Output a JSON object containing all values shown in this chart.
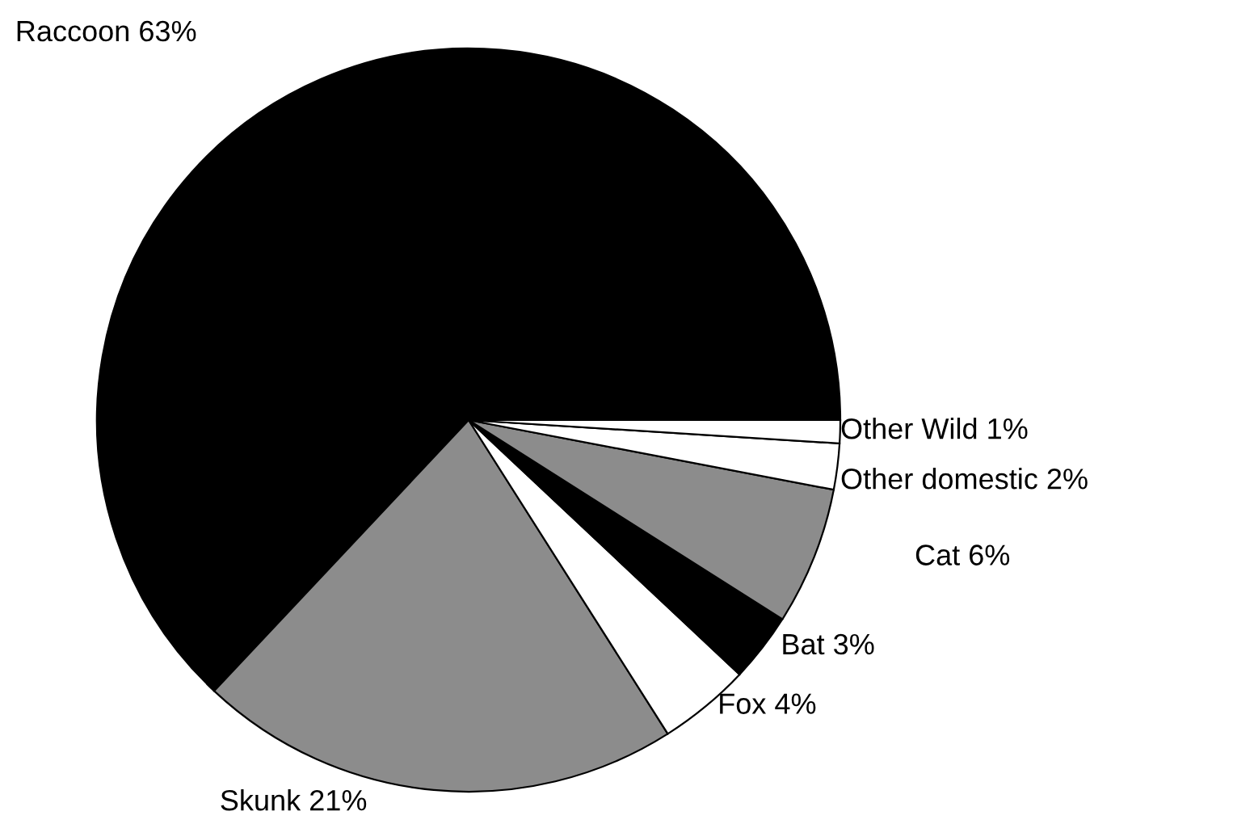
{
  "chart_data": {
    "type": "pie",
    "categories": [
      "Raccoon",
      "Skunk",
      "Fox",
      "Bat",
      "Cat",
      "Other domestic",
      "Other Wild"
    ],
    "values": [
      63,
      21,
      4,
      3,
      6,
      2,
      1
    ],
    "colors": [
      "#000000",
      "#8c8c8c",
      "#ffffff",
      "#000000",
      "#8c8c8c",
      "#ffffff",
      "#ffffff"
    ],
    "value_labels": [
      "63%",
      "21%",
      "4%",
      "3%",
      "6%",
      "2%",
      "1%"
    ]
  }
}
